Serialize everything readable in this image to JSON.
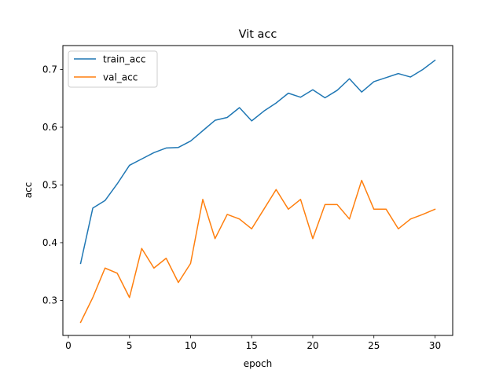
{
  "chart_data": {
    "type": "line",
    "title": "Vit acc",
    "xlabel": "epoch",
    "ylabel": "acc",
    "xlim": [
      -0.45,
      31.45
    ],
    "ylim": [
      0.2393,
      0.7415
    ],
    "xticks": [
      0,
      5,
      10,
      15,
      20,
      25,
      30
    ],
    "yticks": [
      0.3,
      0.4,
      0.5,
      0.6,
      0.7
    ],
    "xtick_labels": [
      "0",
      "5",
      "10",
      "15",
      "20",
      "25",
      "30"
    ],
    "ytick_labels": [
      "0.3",
      "0.4",
      "0.5",
      "0.6",
      "0.7"
    ],
    "grid": false,
    "legend_position": "upper-left",
    "x": [
      1,
      2,
      3,
      4,
      5,
      6,
      7,
      8,
      9,
      10,
      11,
      12,
      13,
      14,
      15,
      16,
      17,
      18,
      19,
      20,
      21,
      22,
      23,
      24,
      25,
      26,
      27,
      28,
      29,
      30
    ],
    "series": [
      {
        "name": "train_acc",
        "color": "#1f77b4",
        "values": [
          0.364,
          0.46,
          0.473,
          0.502,
          0.534,
          0.545,
          0.556,
          0.564,
          0.565,
          0.576,
          0.594,
          0.612,
          0.617,
          0.634,
          0.611,
          0.628,
          0.642,
          0.659,
          0.652,
          0.665,
          0.651,
          0.664,
          0.684,
          0.661,
          0.679,
          0.686,
          0.693,
          0.687,
          0.7,
          0.716
        ]
      },
      {
        "name": "val_acc",
        "color": "#ff7f0e",
        "values": [
          0.262,
          0.305,
          0.356,
          0.347,
          0.305,
          0.39,
          0.356,
          0.373,
          0.331,
          0.364,
          0.475,
          0.407,
          0.449,
          0.441,
          0.424,
          0.458,
          0.492,
          0.458,
          0.475,
          0.407,
          0.466,
          0.466,
          0.441,
          0.508,
          0.458,
          0.458,
          0.424,
          0.441,
          0.449,
          0.458
        ]
      }
    ]
  }
}
